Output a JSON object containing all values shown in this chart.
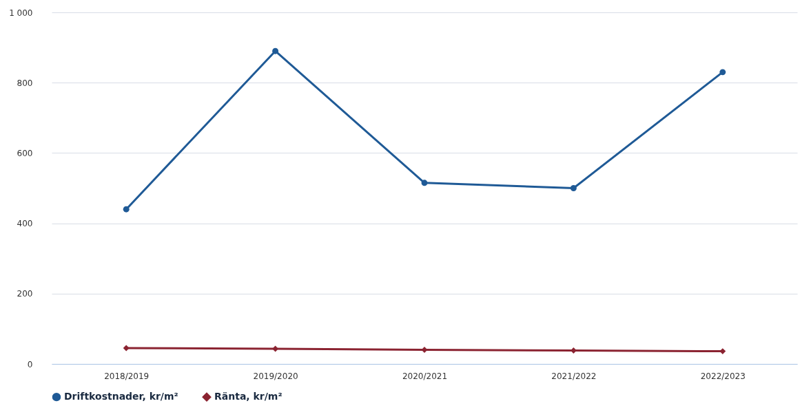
{
  "chart_data": {
    "type": "line",
    "categories": [
      "2018/2019",
      "2019/2020",
      "2020/2021",
      "2021/2022",
      "2022/2023"
    ],
    "series": [
      {
        "name": "Driftkostnader, kr/m²",
        "color": "#1f5a96",
        "marker": "circle",
        "values": [
          440,
          890,
          515,
          500,
          830
        ]
      },
      {
        "name": "Ränta, kr/m²",
        "color": "#8b2331",
        "marker": "diamond",
        "values": [
          45,
          43,
          40,
          38,
          36
        ]
      }
    ],
    "ylim": [
      0,
      1000
    ],
    "yticks": [
      0,
      200,
      400,
      600,
      800,
      {
        "value": 1000,
        "label": "1 000"
      }
    ],
    "grid": "y",
    "legend": "bottom"
  }
}
